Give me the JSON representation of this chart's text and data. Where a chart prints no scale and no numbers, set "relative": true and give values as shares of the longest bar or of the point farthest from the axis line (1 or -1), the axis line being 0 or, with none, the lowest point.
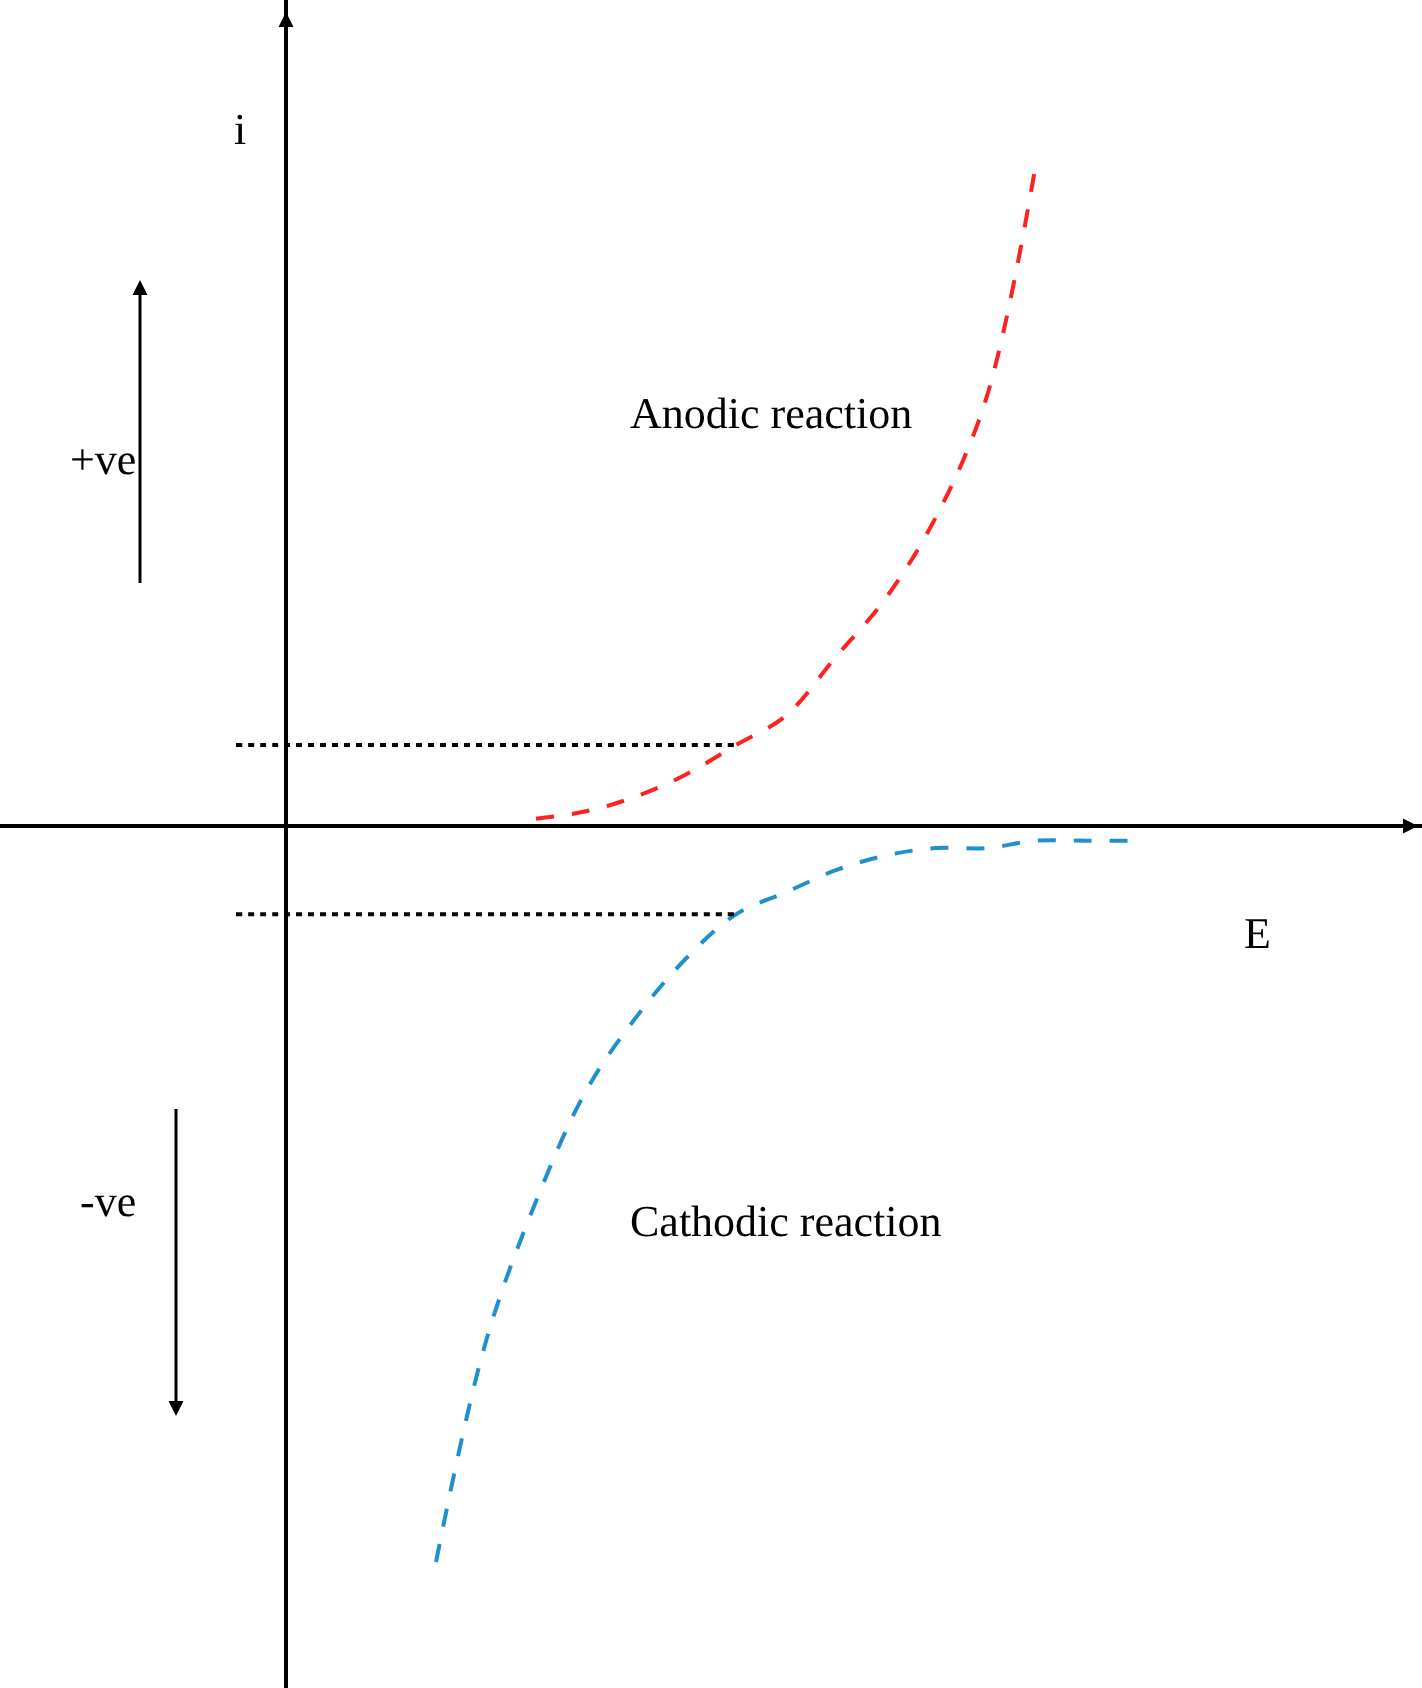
{
  "chart_data": {
    "type": "line",
    "relative": true,
    "xlabel": "E",
    "ylabel": "i",
    "line_style": "dashed",
    "categories": [
      null,
      null,
      null,
      null,
      null,
      null,
      null,
      null,
      null,
      null,
      null,
      null,
      null,
      null,
      null,
      null,
      null,
      null,
      null,
      null,
      null,
      null,
      null,
      null,
      null
    ],
    "annotations": [
      "+ve",
      "-ve"
    ],
    "series": [
      {
        "name": "Anodic reaction",
        "color": "#ff2020",
        "values": [
          null,
          null,
          null,
          null,
          null,
          null,
          null,
          null,
          0.01,
          0.02,
          0.04,
          0.07,
          0.11,
          0.15,
          0.23,
          0.31,
          0.42,
          0.58,
          0.9,
          null,
          null,
          null,
          null,
          null,
          null
        ]
      },
      {
        "name": "Cathodic reaction",
        "color": "#1e90d0",
        "values": [
          null,
          null,
          null,
          null,
          null,
          null,
          -1,
          -0.7,
          -0.51,
          -0.36,
          -0.26,
          -0.18,
          -0.12,
          -0.09,
          -0.06,
          -0.04,
          -0.03,
          -0.03,
          -0.02,
          -0.02,
          -0.02,
          null,
          null,
          null,
          null
        ]
      },
      {
        "color": "#000000",
        "line_style": "dotted",
        "values": [
          null,
          null,
          0.11,
          0.11,
          0.11,
          0.11,
          0.11,
          0.11,
          0.11,
          0.11,
          0.11,
          0.11,
          0.11,
          null,
          null,
          null,
          null,
          null,
          null,
          null,
          null,
          null,
          null,
          null,
          null
        ]
      },
      {
        "color": "#000000",
        "line_style": "dotted",
        "values": [
          null,
          null,
          -0.12,
          -0.12,
          -0.12,
          -0.12,
          -0.12,
          -0.12,
          -0.12,
          -0.12,
          -0.12,
          -0.12,
          -0.12,
          null,
          null,
          null,
          null,
          null,
          null,
          null,
          null,
          null,
          null,
          null,
          null
        ]
      }
    ]
  }
}
